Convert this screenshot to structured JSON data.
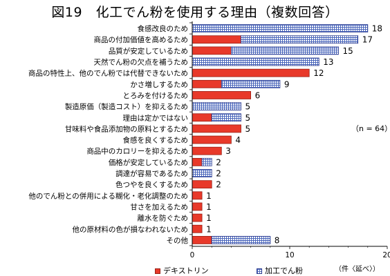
{
  "title": "図19　化工でん粉を使用する理由（複数回答）",
  "note": "（n = 64）",
  "unit_label": "（件〈延べ〉）",
  "colors": {
    "dextrin": "#e8392a",
    "dextrin_edge": "#9a1f14",
    "processed": "#ffffff",
    "processed_pattern": "#4a66bb",
    "processed_edge": "#2a3a8f"
  },
  "chart_data": {
    "type": "bar",
    "orientation": "horizontal",
    "stacked": true,
    "categories": [
      "食感改良のため",
      "商品の付加価値を高めるため",
      "品質が安定しているため",
      "天然でん粉の欠点を補うため",
      "商品の特性上、他のでん粉では代替できないため",
      "かさ増しするため",
      "とろみを付けるため",
      "製造原価（製造コスト）を抑えるため",
      "理由は定かではない",
      "甘味料や食品添加物の原料とするため",
      "食感を良くするため",
      "商品中のカロリーを抑えるため",
      "価格が安定しているため",
      "調達が容易であるため",
      "色つやを良くするため",
      "他のでん粉との併用による糊化・老化調整のため",
      "甘さを加えるため",
      "離水を防ぐため",
      "他の原材料の色が損なわれないため",
      "その他"
    ],
    "series": [
      {
        "name": "デキストリン",
        "values": [
          0,
          5,
          4,
          0,
          12,
          3,
          6,
          0,
          2,
          5,
          4,
          3,
          1,
          0,
          2,
          1,
          1,
          1,
          1,
          2
        ]
      },
      {
        "name": "加工でん粉",
        "values": [
          18,
          12,
          11,
          13,
          0,
          6,
          0,
          5,
          3,
          0,
          0,
          0,
          1,
          2,
          0,
          0,
          0,
          0,
          0,
          6
        ]
      }
    ],
    "totals": [
      18,
      17,
      15,
      13,
      12,
      9,
      6,
      5,
      5,
      5,
      4,
      3,
      2,
      2,
      2,
      1,
      1,
      1,
      1,
      8
    ],
    "x_ticks": [
      "0",
      "10",
      "20"
    ],
    "xlim": [
      0,
      20
    ],
    "grid": false,
    "legend_position": "bottom"
  }
}
